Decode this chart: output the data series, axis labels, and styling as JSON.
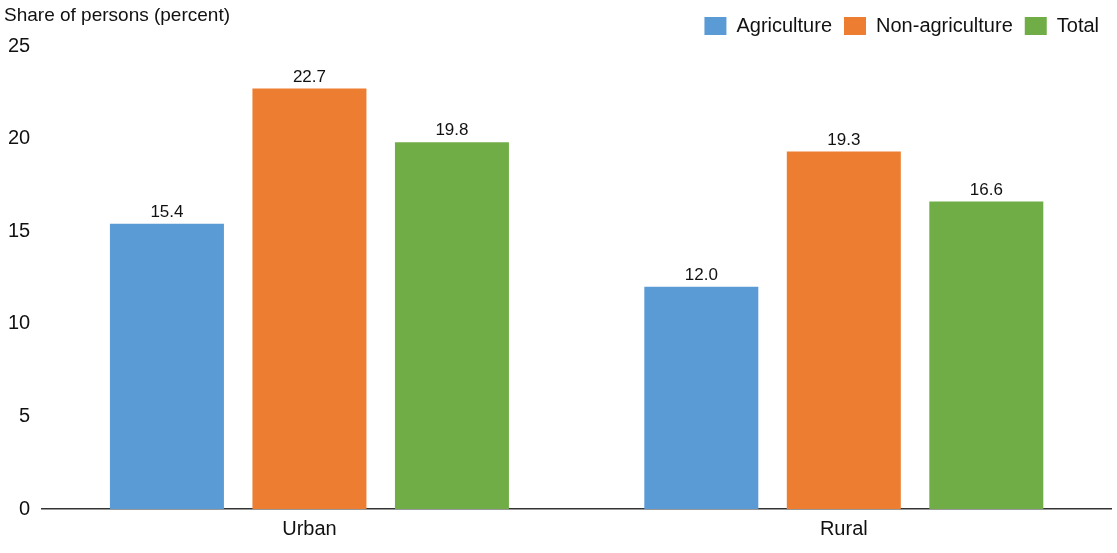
{
  "chart_data": {
    "type": "bar",
    "ylabel": "Share of persons (percent)",
    "categories": [
      "Urban",
      "Rural"
    ],
    "series": [
      {
        "name": "Agriculture",
        "color": "#5b9bd5",
        "values": [
          15.4,
          12.0
        ],
        "value_labels": [
          "15.4",
          "12.0"
        ]
      },
      {
        "name": "Non-agriculture",
        "color": "#ed7d31",
        "values": [
          22.7,
          19.3
        ],
        "value_labels": [
          "22.7",
          "19.3"
        ]
      },
      {
        "name": "Total",
        "color": "#70ad47",
        "values": [
          19.8,
          16.6
        ],
        "value_labels": [
          "19.8",
          "16.6"
        ]
      }
    ],
    "ylim": [
      0,
      25
    ],
    "yticks": [
      0,
      5,
      10,
      15,
      20,
      25
    ],
    "grid": false,
    "legend": "top right"
  }
}
